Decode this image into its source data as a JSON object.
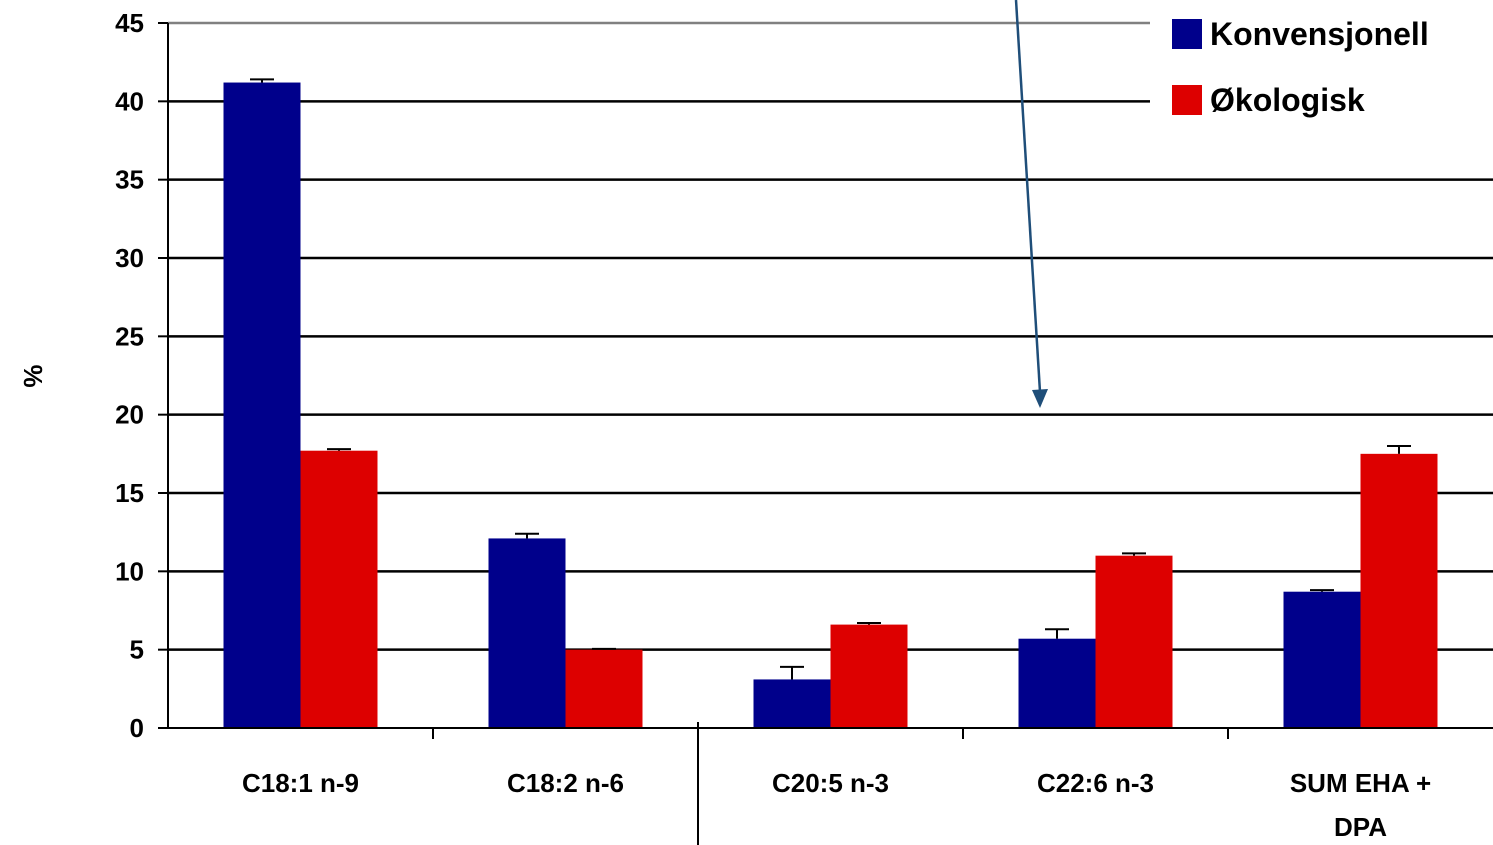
{
  "chart_data": {
    "type": "bar",
    "ylabel": "%",
    "xlabel": "",
    "ylim": [
      0,
      45
    ],
    "yticks": [
      "0",
      "5",
      "10",
      "15",
      "20",
      "25",
      "30",
      "35",
      "40",
      "45"
    ],
    "grid": true,
    "legend_position": "top-right",
    "categories": [
      "C18:1  n-9",
      "C18:2 n-6",
      "C20:5 n-3",
      "C22:6 n-3",
      "SUM EHA + DPA"
    ],
    "series": [
      {
        "name": "Konvensjonell",
        "color": "#00008b",
        "values": [
          41.2,
          12.1,
          3.1,
          5.7,
          8.7
        ],
        "errors": [
          0.2,
          0.3,
          0.8,
          0.6,
          0.1
        ]
      },
      {
        "name": "Økologisk",
        "color": "#dd0000",
        "values": [
          17.7,
          5.0,
          6.6,
          11.0,
          17.5
        ],
        "errors": [
          0.1,
          0.05,
          0.1,
          0.15,
          0.5
        ]
      }
    ]
  }
}
